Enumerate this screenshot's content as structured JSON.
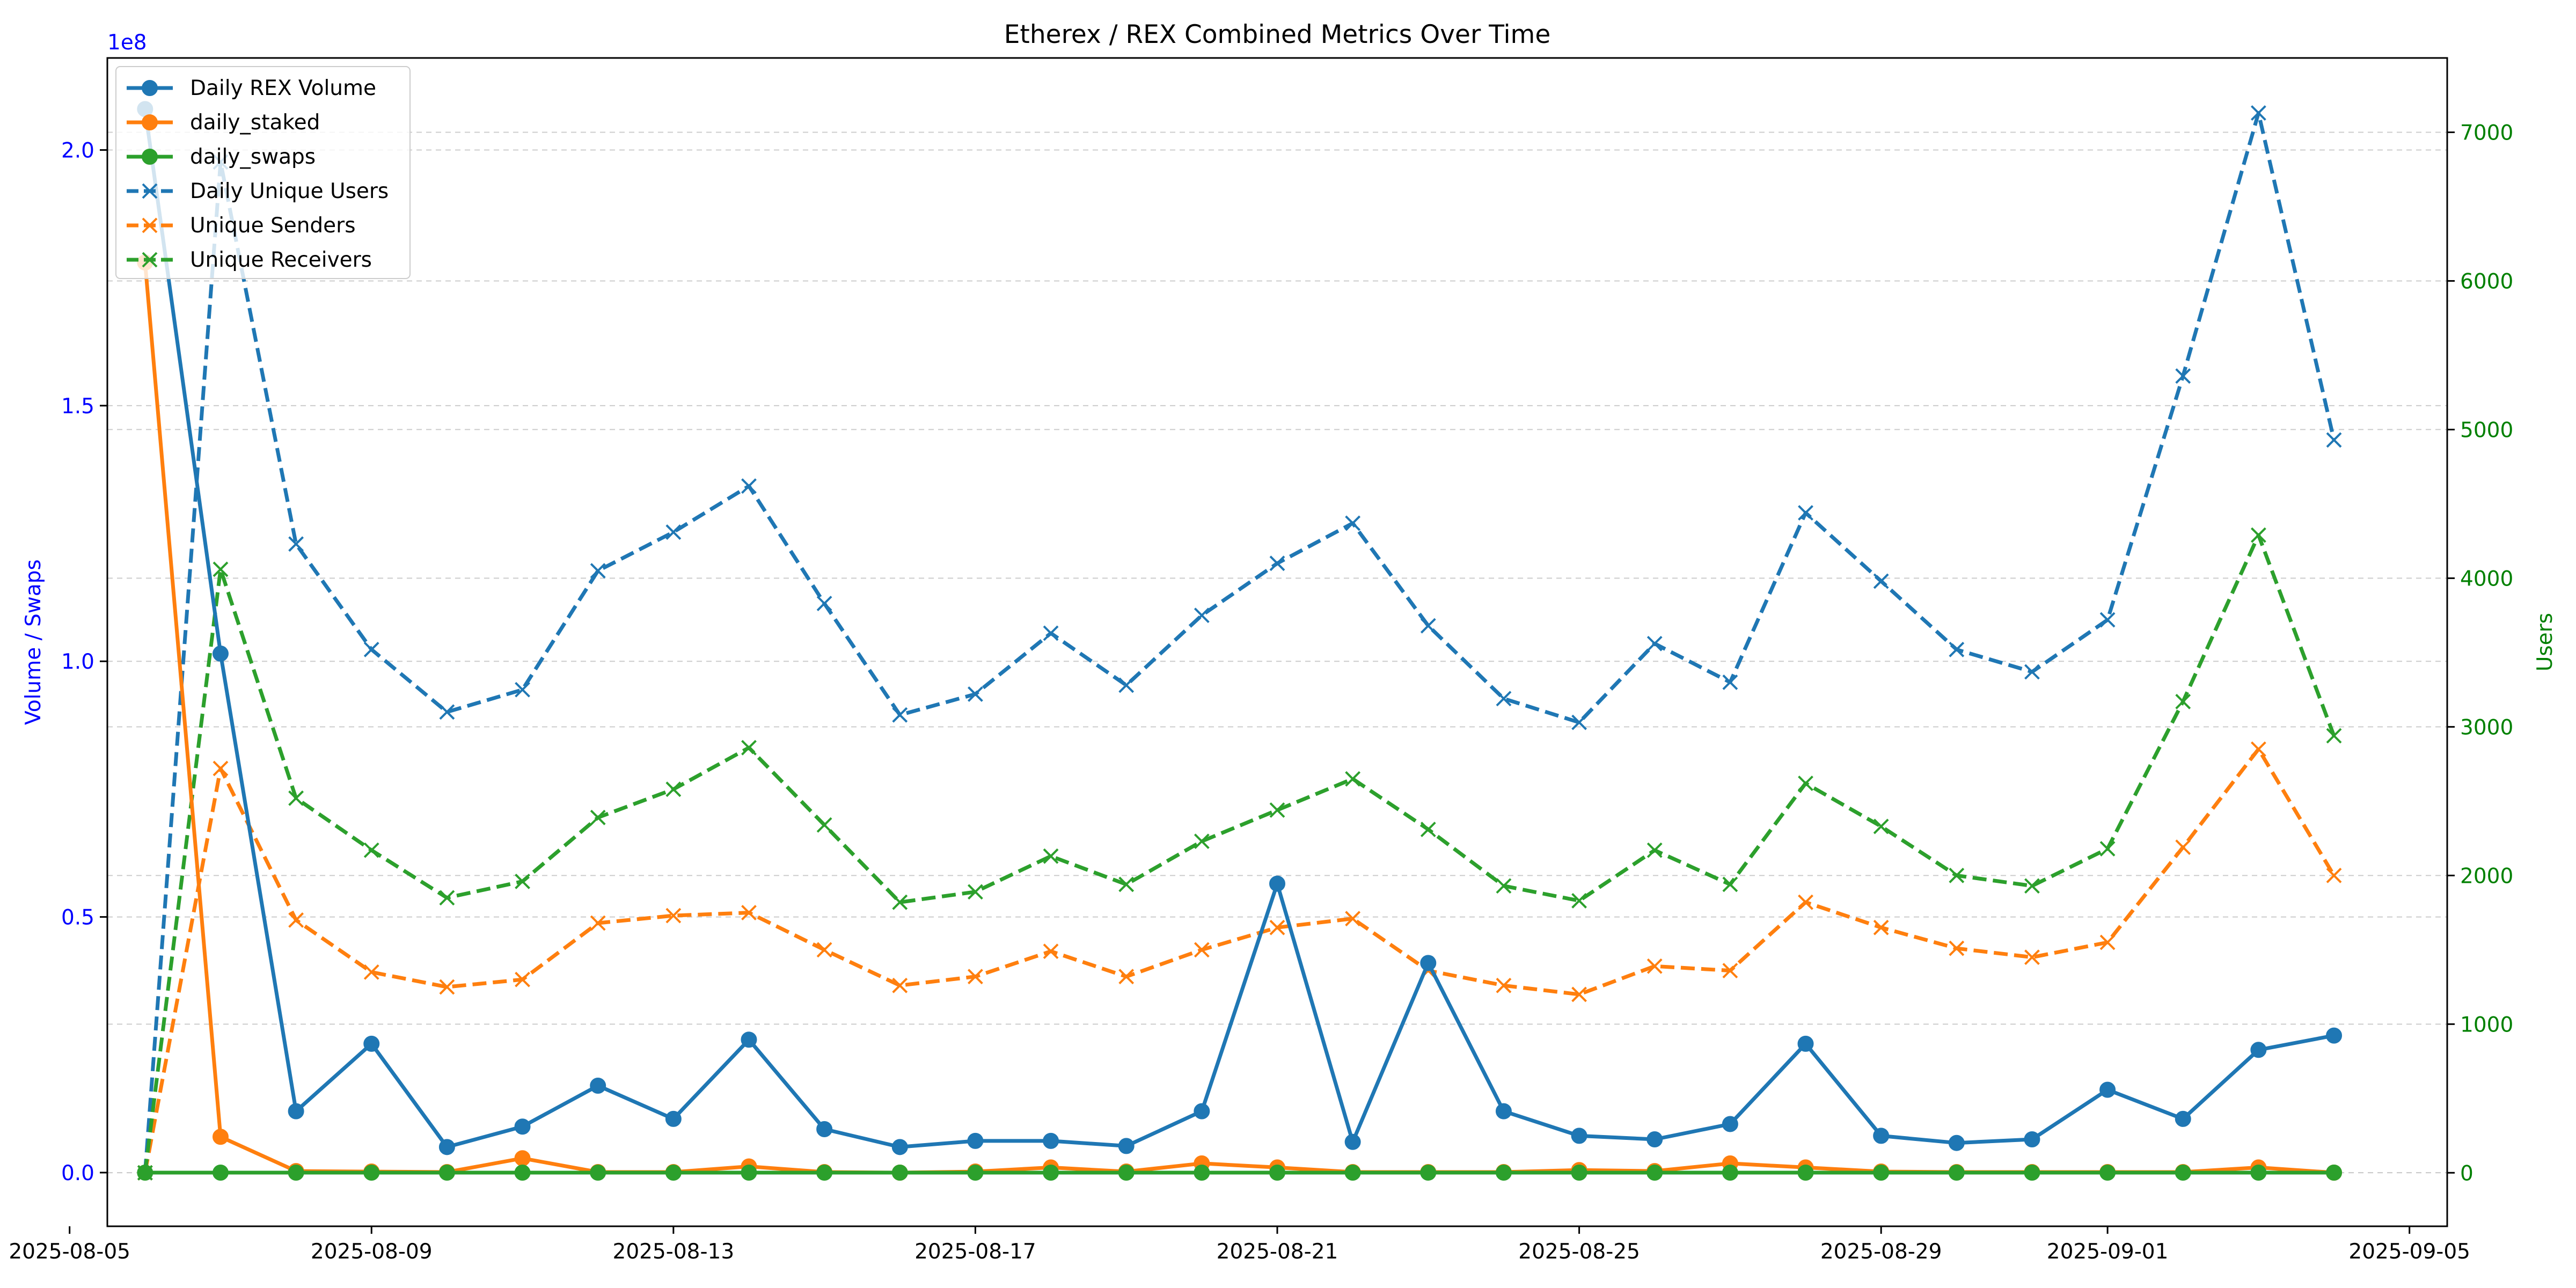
{
  "chart_data": {
    "type": "line",
    "title": "Etherex / REX Combined Metrics Over Time",
    "x": [
      "2025-08-06",
      "2025-08-07",
      "2025-08-08",
      "2025-08-09",
      "2025-08-10",
      "2025-08-11",
      "2025-08-12",
      "2025-08-13",
      "2025-08-14",
      "2025-08-15",
      "2025-08-16",
      "2025-08-17",
      "2025-08-18",
      "2025-08-19",
      "2025-08-20",
      "2025-08-21",
      "2025-08-22",
      "2025-08-23",
      "2025-08-24",
      "2025-08-25",
      "2025-08-26",
      "2025-08-27",
      "2025-08-28",
      "2025-08-29",
      "2025-08-30",
      "2025-08-31",
      "2025-09-01",
      "2025-09-02",
      "2025-09-03",
      "2025-09-04"
    ],
    "x_ticks": [
      "2025-08-05",
      "2025-08-09",
      "2025-08-13",
      "2025-08-17",
      "2025-08-21",
      "2025-08-25",
      "2025-08-29",
      "2025-09-01",
      "2025-09-05"
    ],
    "xlim": [
      "2025-08-05T12:00",
      "2025-09-05T12:00"
    ],
    "left_axis": {
      "label": "Volume / Swaps",
      "color": "#0000ff",
      "multiplier": "1e8",
      "ylim": [
        -0.105,
        2.18
      ],
      "ticks": [
        0.0,
        0.5,
        1.0,
        1.5,
        2.0
      ],
      "tick_labels": [
        "0.0",
        "0.5",
        "1.0",
        "1.5",
        "2.0"
      ]
    },
    "right_axis": {
      "label": "Users",
      "color": "#008000",
      "ylim": [
        -360,
        7500
      ],
      "ticks": [
        0,
        1000,
        2000,
        3000,
        4000,
        5000,
        6000,
        7000
      ],
      "tick_labels": [
        "0",
        "1000",
        "2000",
        "3000",
        "4000",
        "5000",
        "6000",
        "7000"
      ]
    },
    "grid": "horizontal dashed",
    "legend_position": "upper-left",
    "series": [
      {
        "name": "Daily REX Volume",
        "axis": "left",
        "color": "#1f77b4",
        "marker": "circle",
        "style": "solid",
        "values": [
          2.08,
          1.015,
          0.12,
          0.252,
          0.05,
          0.09,
          0.17,
          0.105,
          0.26,
          0.085,
          0.05,
          0.062,
          0.062,
          0.052,
          0.12,
          0.565,
          0.06,
          0.41,
          0.12,
          0.072,
          0.065,
          0.095,
          0.252,
          0.072,
          0.058,
          0.065,
          0.162,
          0.105,
          0.24,
          0.268
        ]
      },
      {
        "name": "daily_staked",
        "axis": "left",
        "color": "#ff7f0e",
        "marker": "circle",
        "style": "solid",
        "values": [
          1.78,
          0.07,
          0.003,
          0.002,
          0.001,
          0.028,
          0.001,
          0.001,
          0.012,
          0.001,
          0.0,
          0.002,
          0.01,
          0.002,
          0.018,
          0.01,
          0.001,
          0.001,
          0.001,
          0.005,
          0.003,
          0.018,
          0.01,
          0.002,
          0.001,
          0.001,
          0.001,
          0.001,
          0.01,
          0.0
        ]
      },
      {
        "name": "daily_swaps",
        "axis": "left",
        "color": "#2ca02c",
        "marker": "circle",
        "style": "solid",
        "values": [
          0.0,
          0.0,
          0.0,
          0.0,
          0.0,
          0.0,
          0.0,
          0.0,
          0.0,
          0.0,
          0.0,
          0.0,
          0.0,
          0.0,
          0.0,
          0.0,
          0.0,
          0.0,
          0.0,
          0.0,
          0.0,
          0.0,
          0.0,
          0.0,
          0.0,
          0.0,
          0.0,
          0.0,
          0.0,
          0.0
        ]
      },
      {
        "name": "Daily Unique Users",
        "axis": "right",
        "color": "#1f77b4",
        "marker": "x",
        "style": "dashed",
        "values": [
          0,
          6800,
          4230,
          3520,
          3100,
          3250,
          4050,
          4310,
          4620,
          3830,
          3080,
          3220,
          3630,
          3280,
          3750,
          4100,
          4370,
          3680,
          3190,
          3030,
          3560,
          3300,
          4440,
          3980,
          3520,
          3370,
          3720,
          5360,
          7130,
          4930
        ]
      },
      {
        "name": "Unique Senders",
        "axis": "right",
        "color": "#ff7f0e",
        "marker": "x",
        "style": "dashed",
        "values": [
          0,
          2720,
          1700,
          1350,
          1250,
          1300,
          1680,
          1730,
          1750,
          1500,
          1260,
          1320,
          1490,
          1320,
          1500,
          1650,
          1710,
          1360,
          1260,
          1200,
          1390,
          1360,
          1820,
          1650,
          1510,
          1450,
          1550,
          2190,
          2850,
          2000
        ]
      },
      {
        "name": "Unique Receivers",
        "axis": "right",
        "color": "#2ca02c",
        "marker": "x",
        "style": "dashed",
        "values": [
          0,
          4060,
          2520,
          2170,
          1850,
          1960,
          2390,
          2580,
          2860,
          2340,
          1820,
          1890,
          2130,
          1940,
          2230,
          2440,
          2650,
          2310,
          1930,
          1830,
          2170,
          1940,
          2620,
          2330,
          2000,
          1930,
          2180,
          3170,
          4290,
          2940
        ]
      }
    ]
  }
}
